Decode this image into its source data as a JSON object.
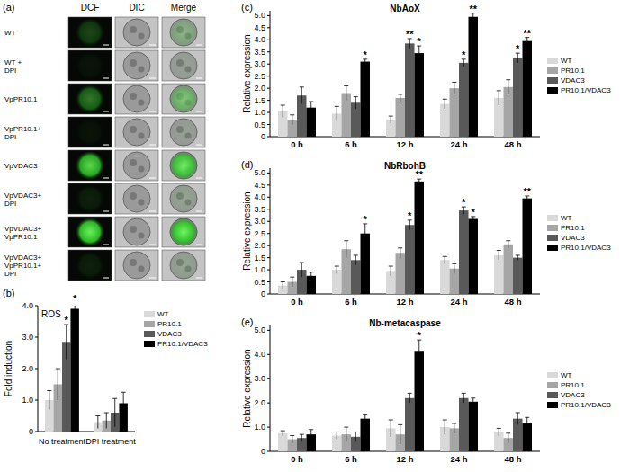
{
  "panel_a": {
    "annotations": [
      "(a)"
    ],
    "columns": [
      "DCF",
      "DIC",
      "Merge"
    ],
    "rows": [
      {
        "label": [
          "WT"
        ],
        "intensity": 0.25
      },
      {
        "label": [
          "WT +",
          "DPI"
        ],
        "intensity": 0.05
      },
      {
        "label": [
          "VpPR10.1"
        ],
        "intensity": 0.45
      },
      {
        "label": [
          "VpPR10.1+",
          "DPI"
        ],
        "intensity": 0.05
      },
      {
        "label": [
          "VpVDAC3"
        ],
        "intensity": 0.85
      },
      {
        "label": [
          "VpVDAC3+",
          "DPI"
        ],
        "intensity": 0.1
      },
      {
        "label": [
          "VpVDAC3+",
          "VpPR10.1"
        ],
        "intensity": 0.95
      },
      {
        "label": [
          "VpVDAC3+",
          "VpPR10.1+",
          "DPI"
        ],
        "intensity": 0.1
      }
    ]
  },
  "chart_data": [
    {
      "type": "bar",
      "title": "ROS",
      "annotations": [
        "(b)"
      ],
      "y_label": "Fold induction",
      "categories": [
        "No treatment",
        "DPI treatment"
      ],
      "ylim": [
        0,
        4
      ],
      "yticks": [
        0,
        {
          "value": 1,
          "label": "1.0"
        },
        {
          "value": 2,
          "label": "2.0"
        },
        {
          "value": 3,
          "label": "3.0"
        },
        {
          "value": 4,
          "label": "4.0"
        }
      ],
      "legend": "right",
      "series": [
        {
          "name": "WT",
          "color": "#d9d9d9",
          "values": [
            1.0,
            0.3
          ],
          "errors": [
            0.3,
            0.2
          ],
          "significance": [
            null,
            null
          ]
        },
        {
          "name": "PR10.1",
          "color": "#a6a6a6",
          "values": [
            1.5,
            0.35
          ],
          "errors": [
            0.5,
            0.25
          ],
          "significance": [
            null,
            null
          ]
        },
        {
          "name": "VDAC3",
          "color": "#595959",
          "values": [
            2.85,
            0.6
          ],
          "errors": [
            0.55,
            0.45
          ],
          "significance": [
            "*",
            null
          ]
        },
        {
          "name": "PR10.1/VDAC3",
          "color": "#000000",
          "values": [
            3.9,
            0.9
          ],
          "errors": [
            0.2,
            0.35
          ],
          "significance": [
            "*",
            null
          ]
        }
      ]
    },
    {
      "type": "bar",
      "title": "NbAoX",
      "annotations": [
        "(c)"
      ],
      "y_label": "Relative expression",
      "categories": [
        "0 h",
        "6 h",
        "12 h",
        "24 h",
        "48 h"
      ],
      "ylim": [
        0,
        5.2
      ],
      "yticks": [
        0,
        0.5,
        {
          "value": 1,
          "label": "1.0"
        },
        1.5,
        {
          "value": 2,
          "label": "2.0"
        },
        2.5,
        {
          "value": 3,
          "label": "3.0"
        },
        3.5,
        {
          "value": 4,
          "label": "4.0"
        },
        4.5,
        {
          "value": 5,
          "label": "5.0"
        }
      ],
      "legend": "right",
      "series": [
        {
          "name": "WT",
          "color": "#d9d9d9",
          "values": [
            1.05,
            0.95,
            0.7,
            1.35,
            1.6
          ],
          "errors": [
            0.25,
            0.3,
            0.15,
            0.2,
            0.3
          ],
          "significance": [
            null,
            null,
            null,
            null,
            null
          ]
        },
        {
          "name": "PR10.1",
          "color": "#a6a6a6",
          "values": [
            0.7,
            1.8,
            1.6,
            2.0,
            2.05
          ],
          "errors": [
            0.2,
            0.3,
            0.15,
            0.25,
            0.3
          ],
          "significance": [
            null,
            null,
            null,
            null,
            null
          ]
        },
        {
          "name": "VDAC3",
          "color": "#595959",
          "values": [
            1.7,
            1.4,
            3.85,
            3.05,
            3.25
          ],
          "errors": [
            0.35,
            0.25,
            0.2,
            0.15,
            0.2
          ],
          "significance": [
            null,
            null,
            "**",
            "*",
            "*"
          ]
        },
        {
          "name": "PR10.1/VDAC3",
          "color": "#000000",
          "values": [
            1.2,
            3.1,
            3.45,
            4.95,
            3.95
          ],
          "errors": [
            0.25,
            0.1,
            0.3,
            0.15,
            0.15
          ],
          "significance": [
            null,
            "*",
            "*",
            "**",
            "**"
          ]
        }
      ]
    },
    {
      "type": "bar",
      "title": "NbRbohB",
      "annotations": [
        "(d)"
      ],
      "y_label": "Relative expression",
      "categories": [
        "0 h",
        "6 h",
        "12 h",
        "24 h",
        "48 h"
      ],
      "ylim": [
        0,
        5.2
      ],
      "yticks": [
        0,
        0.5,
        {
          "value": 1,
          "label": "1.0"
        },
        1.5,
        {
          "value": 2,
          "label": "2.0"
        },
        2.5,
        {
          "value": 3,
          "label": "3.0"
        },
        3.5,
        {
          "value": 4,
          "label": "4.0"
        },
        4.5,
        {
          "value": 5,
          "label": "5.0"
        }
      ],
      "legend": "right",
      "series": [
        {
          "name": "WT",
          "color": "#d9d9d9",
          "values": [
            0.35,
            1.0,
            0.95,
            1.4,
            1.6
          ],
          "errors": [
            0.15,
            0.15,
            0.2,
            0.15,
            0.2
          ],
          "significance": [
            null,
            null,
            null,
            null,
            null
          ]
        },
        {
          "name": "PR10.1",
          "color": "#a6a6a6",
          "values": [
            0.5,
            1.85,
            1.7,
            1.05,
            2.05
          ],
          "errors": [
            0.2,
            0.35,
            0.2,
            0.2,
            0.15
          ],
          "significance": [
            null,
            null,
            null,
            null,
            null
          ]
        },
        {
          "name": "VDAC3",
          "color": "#595959",
          "values": [
            1.0,
            1.4,
            2.85,
            3.45,
            1.5
          ],
          "errors": [
            0.3,
            0.2,
            0.2,
            0.15,
            0.1
          ],
          "significance": [
            null,
            null,
            "*",
            "*",
            null
          ]
        },
        {
          "name": "PR10.1/VDAC3",
          "color": "#000000",
          "values": [
            0.75,
            2.5,
            4.65,
            3.1,
            3.95
          ],
          "errors": [
            0.15,
            0.4,
            0.1,
            0.1,
            0.1
          ],
          "significance": [
            null,
            "*",
            "**",
            "*",
            "**"
          ]
        }
      ]
    },
    {
      "type": "bar",
      "title": "Nb-metacaspase",
      "annotations": [
        "(e)"
      ],
      "y_label": "Relative expression",
      "categories": [
        "0 h",
        "6 h",
        "12 h",
        "24 h",
        "48 h"
      ],
      "ylim": [
        0,
        5.2
      ],
      "yticks": [
        0,
        {
          "value": 1,
          "label": "1.0"
        },
        {
          "value": 2,
          "label": "2.0"
        },
        {
          "value": 3,
          "label": "3.0"
        },
        {
          "value": 4,
          "label": "4.0"
        },
        {
          "value": 5,
          "label": "5.0"
        }
      ],
      "legend": "right",
      "series": [
        {
          "name": "WT",
          "color": "#d9d9d9",
          "values": [
            0.75,
            0.65,
            0.95,
            1.0,
            0.8
          ],
          "errors": [
            0.1,
            0.15,
            0.35,
            0.3,
            0.15
          ],
          "significance": [
            null,
            null,
            null,
            null,
            null
          ]
        },
        {
          "name": "PR10.1",
          "color": "#a6a6a6",
          "values": [
            0.5,
            0.7,
            0.7,
            0.95,
            0.55
          ],
          "errors": [
            0.15,
            0.3,
            0.4,
            0.2,
            0.2
          ],
          "significance": [
            null,
            null,
            null,
            null,
            null
          ]
        },
        {
          "name": "VDAC3",
          "color": "#595959",
          "values": [
            0.55,
            0.6,
            2.2,
            2.2,
            1.35
          ],
          "errors": [
            0.15,
            0.2,
            0.2,
            0.2,
            0.25
          ],
          "significance": [
            null,
            null,
            null,
            null,
            null
          ]
        },
        {
          "name": "PR10.1/VDAC3",
          "color": "#000000",
          "values": [
            0.7,
            1.35,
            4.15,
            2.05,
            1.15
          ],
          "errors": [
            0.2,
            0.15,
            0.45,
            0.15,
            0.25
          ],
          "significance": [
            null,
            null,
            "*",
            null,
            null
          ]
        }
      ]
    }
  ]
}
